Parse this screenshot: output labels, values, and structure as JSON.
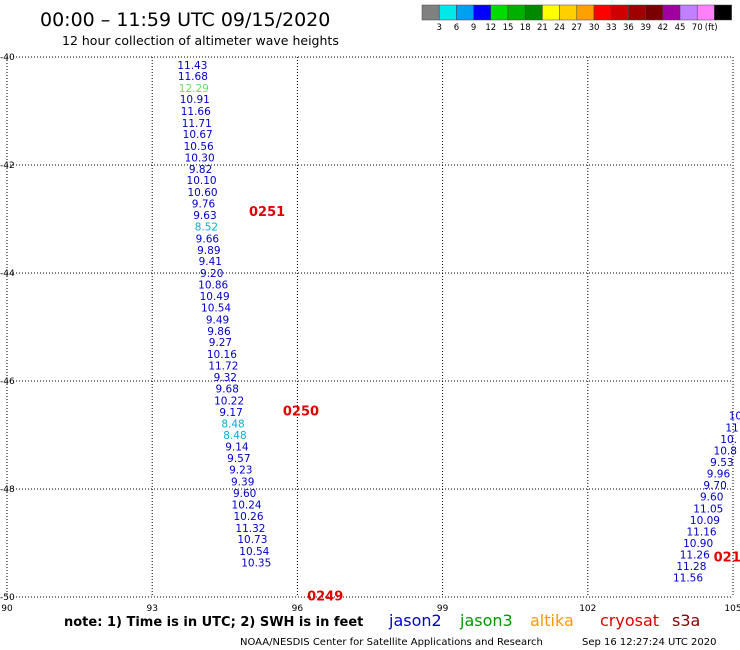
{
  "header": {
    "title": "00:00 – 11:59 UTC 09/15/2020",
    "subtitle": "12 hour collection of altimeter wave heights"
  },
  "legend": {
    "colors": [
      "#808080",
      "#00e8e8",
      "#00a0f0",
      "#0000ff",
      "#00dc00",
      "#00b000",
      "#008800",
      "#ffff00",
      "#ffd000",
      "#ffa000",
      "#ff0000",
      "#d00000",
      "#a00000",
      "#780000",
      "#a000a0",
      "#c080ff",
      "#ff80ff",
      "#000000"
    ],
    "labels": [
      "3",
      "6",
      "9",
      "12",
      "15",
      "18",
      "21",
      "24",
      "27",
      "30",
      "33",
      "36",
      "39",
      "42",
      "45",
      "70"
    ],
    "unit": "(ft)"
  },
  "footer": {
    "note": "note:  1) Time is in UTC;  2) SWH is in feet",
    "satellites": [
      {
        "name": "jason2",
        "color": "#0000cc"
      },
      {
        "name": "jason3",
        "color": "#009900"
      },
      {
        "name": "altika",
        "color": "#ff9900"
      },
      {
        "name": "cryosat",
        "color": "#dd0000"
      },
      {
        "name": "s3a",
        "color": "#880000"
      }
    ],
    "credit": "NOAA/NESDIS Center for Satellite Applications and Research",
    "timestamp": "Sep 16 12:27:24 UTC 2020"
  },
  "chart_data": {
    "type": "scatter",
    "title": "00:00 – 11:59 UTC 09/15/2020",
    "subtitle": "12 hour collection of altimeter wave heights",
    "xlabel": "",
    "ylabel": "",
    "xlim": [
      90,
      105
    ],
    "ylim": [
      -50,
      -40
    ],
    "x_ticks": [
      "90",
      "93",
      "96",
      "99",
      "102",
      "105"
    ],
    "y_ticks": [
      "-40",
      "-42",
      "-44",
      "-46",
      "-48",
      "-50"
    ],
    "grid": true,
    "passes": [
      {
        "label": "0251",
        "x": 95.0,
        "y": -42.85
      },
      {
        "label": "0250",
        "x": 95.7,
        "y": -46.55
      },
      {
        "label": "0249",
        "x": 96.2,
        "y": -49.97
      },
      {
        "label": "021",
        "x": 104.6,
        "y": -49.25
      }
    ],
    "series": [
      {
        "name": "",
        "color": "#0000cc",
        "points": [
          {
            "x": 93.83,
            "y": -40.15,
            "v": "11.43"
          },
          {
            "x": 93.84,
            "y": -40.35,
            "v": "11.68"
          },
          {
            "x": 93.86,
            "y": -40.57,
            "v": "12.29",
            "c": "#66dd66"
          },
          {
            "x": 93.88,
            "y": -40.78,
            "v": "10.91"
          },
          {
            "x": 93.9,
            "y": -41.0,
            "v": "11.66"
          },
          {
            "x": 93.92,
            "y": -41.22,
            "v": "11.71"
          },
          {
            "x": 93.94,
            "y": -41.43,
            "v": "10.67"
          },
          {
            "x": 93.96,
            "y": -41.65,
            "v": "10.56"
          },
          {
            "x": 93.98,
            "y": -41.86,
            "v": "10.30"
          },
          {
            "x": 94.0,
            "y": -42.07,
            "v": "9.82"
          },
          {
            "x": 94.02,
            "y": -42.28,
            "v": "10.10"
          },
          {
            "x": 94.04,
            "y": -42.5,
            "v": "10.60"
          },
          {
            "x": 94.06,
            "y": -42.71,
            "v": "9.76"
          },
          {
            "x": 94.09,
            "y": -42.93,
            "v": "9.63"
          },
          {
            "x": 94.12,
            "y": -43.14,
            "v": "8.52",
            "c": "#00b0d0"
          },
          {
            "x": 94.14,
            "y": -43.36,
            "v": "9.66"
          },
          {
            "x": 94.17,
            "y": -43.57,
            "v": "9.89"
          },
          {
            "x": 94.2,
            "y": -43.78,
            "v": "9.41"
          },
          {
            "x": 94.23,
            "y": -44.0,
            "v": "9.20"
          },
          {
            "x": 94.26,
            "y": -44.21,
            "v": "10.86"
          },
          {
            "x": 94.29,
            "y": -44.43,
            "v": "10.49"
          },
          {
            "x": 94.32,
            "y": -44.64,
            "v": "10.54"
          },
          {
            "x": 94.35,
            "y": -44.86,
            "v": "9.49"
          },
          {
            "x": 94.38,
            "y": -45.07,
            "v": "9.86"
          },
          {
            "x": 94.41,
            "y": -45.28,
            "v": "9.27"
          },
          {
            "x": 94.44,
            "y": -45.5,
            "v": "10.16"
          },
          {
            "x": 94.47,
            "y": -45.71,
            "v": "11.72"
          },
          {
            "x": 94.51,
            "y": -45.93,
            "v": "9.32"
          },
          {
            "x": 94.55,
            "y": -46.14,
            "v": "9.68"
          },
          {
            "x": 94.59,
            "y": -46.36,
            "v": "10.22"
          },
          {
            "x": 94.63,
            "y": -46.57,
            "v": "9.17"
          },
          {
            "x": 94.67,
            "y": -46.79,
            "v": "8.48",
            "c": "#00b0d0"
          },
          {
            "x": 94.71,
            "y": -47.0,
            "v": "8.48",
            "c": "#00b0d0"
          },
          {
            "x": 94.75,
            "y": -47.21,
            "v": "9.14"
          },
          {
            "x": 94.79,
            "y": -47.43,
            "v": "9.57"
          },
          {
            "x": 94.83,
            "y": -47.64,
            "v": "9.23"
          },
          {
            "x": 94.87,
            "y": -47.86,
            "v": "9.39"
          },
          {
            "x": 94.91,
            "y": -48.07,
            "v": "9.60"
          },
          {
            "x": 94.95,
            "y": -48.29,
            "v": "10.24"
          },
          {
            "x": 94.99,
            "y": -48.5,
            "v": "10.26"
          },
          {
            "x": 95.03,
            "y": -48.72,
            "v": "11.32"
          },
          {
            "x": 95.07,
            "y": -48.93,
            "v": "10.73"
          },
          {
            "x": 95.11,
            "y": -49.15,
            "v": "10.54"
          },
          {
            "x": 95.15,
            "y": -49.36,
            "v": "10.35"
          }
        ]
      },
      {
        "name": "",
        "color": "#0000cc",
        "points": [
          {
            "x": 105.05,
            "y": -46.64,
            "v": "10"
          },
          {
            "x": 104.98,
            "y": -46.86,
            "v": "11"
          },
          {
            "x": 104.91,
            "y": -47.07,
            "v": "10."
          },
          {
            "x": 104.84,
            "y": -47.29,
            "v": "10.8"
          },
          {
            "x": 104.77,
            "y": -47.5,
            "v": "9.53"
          },
          {
            "x": 104.7,
            "y": -47.71,
            "v": "9.96"
          },
          {
            "x": 104.63,
            "y": -47.93,
            "v": "9.70"
          },
          {
            "x": 104.56,
            "y": -48.14,
            "v": "9.60"
          },
          {
            "x": 104.49,
            "y": -48.36,
            "v": "11.05"
          },
          {
            "x": 104.42,
            "y": -48.57,
            "v": "10.09"
          },
          {
            "x": 104.35,
            "y": -48.79,
            "v": "11.16"
          },
          {
            "x": 104.28,
            "y": -49.0,
            "v": "10.90"
          },
          {
            "x": 104.21,
            "y": -49.21,
            "v": "11.26"
          },
          {
            "x": 104.14,
            "y": -49.43,
            "v": "11.28"
          },
          {
            "x": 104.07,
            "y": -49.64,
            "v": "11.56"
          }
        ]
      }
    ]
  }
}
